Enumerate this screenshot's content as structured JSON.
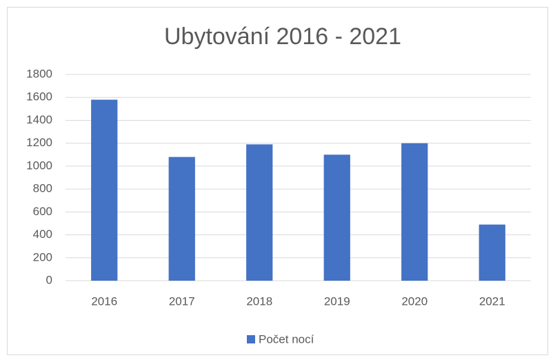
{
  "chart_data": {
    "type": "bar",
    "title": "Ubytování 2016 - 2021",
    "categories": [
      "2016",
      "2017",
      "2018",
      "2019",
      "2020",
      "2021"
    ],
    "series": [
      {
        "name": "Počet nocí",
        "color": "#4472c4",
        "values": [
          1580,
          1080,
          1190,
          1100,
          1200,
          490
        ]
      }
    ],
    "ylim": [
      0,
      1800
    ],
    "yticks": [
      0,
      200,
      400,
      600,
      800,
      1000,
      1200,
      1400,
      1600,
      1800
    ],
    "grid": true,
    "legend": "bottom"
  }
}
